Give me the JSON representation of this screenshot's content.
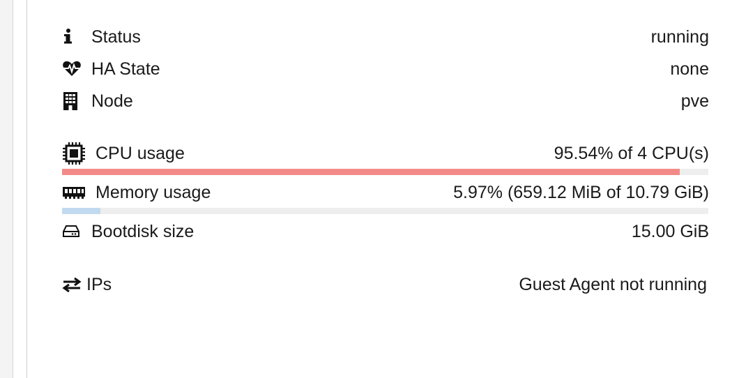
{
  "status": {
    "label": "Status",
    "value": "running",
    "icon": "info-icon"
  },
  "ha_state": {
    "label": "HA State",
    "value": "none",
    "icon": "heartbeat-icon"
  },
  "node": {
    "label": "Node",
    "value": "pve",
    "icon": "building-icon"
  },
  "cpu": {
    "label": "CPU usage",
    "value": "95.54% of 4 CPU(s)",
    "percent": 95.54,
    "bar_color": "#f28b88",
    "icon": "cpu-icon"
  },
  "memory": {
    "label": "Memory usage",
    "value": "5.97% (659.12 MiB of 10.79 GiB)",
    "percent": 5.97,
    "bar_color": "#c2daf0",
    "icon": "memory-icon"
  },
  "bootdisk": {
    "label": "Bootdisk size",
    "value": "15.00 GiB",
    "icon": "hdd-icon"
  },
  "ips": {
    "label": "IPs",
    "value": "Guest Agent not running",
    "icon": "exchange-icon"
  },
  "colors": {
    "bar_track": "#eeeeee",
    "text": "#1a1a1a"
  }
}
